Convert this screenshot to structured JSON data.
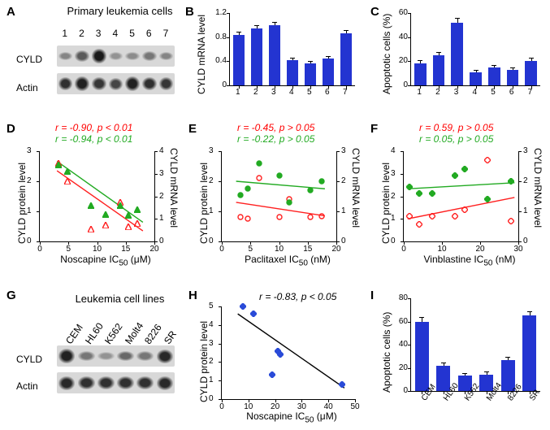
{
  "colors": {
    "bar": "#2334d1",
    "marker_red": "#ff2020",
    "marker_green": "#22aa22",
    "marker_blue": "#2a4bd8",
    "line_black": "#000000"
  },
  "panel_A": {
    "label": "A",
    "title": "Primary leukemia cells",
    "lanes": [
      "1",
      "2",
      "3",
      "4",
      "5",
      "6",
      "7"
    ],
    "rows": [
      {
        "name": "CYLD",
        "type": "blot",
        "intensities": [
          0.25,
          0.55,
          1.0,
          0.15,
          0.2,
          0.35,
          0.25
        ]
      },
      {
        "name": "Actin",
        "type": "blot",
        "intensities": [
          0.85,
          0.95,
          0.8,
          0.7,
          0.95,
          0.85,
          0.8
        ]
      }
    ]
  },
  "panel_B": {
    "label": "B",
    "ylabel": "CYLD mRNA level",
    "ylim": [
      0,
      1.2
    ],
    "yticks": [
      0.0,
      0.4,
      0.8,
      1.2
    ],
    "categories": [
      "1",
      "2",
      "3",
      "4",
      "5",
      "6",
      "7"
    ],
    "values": [
      0.84,
      0.94,
      1.0,
      0.42,
      0.36,
      0.44,
      0.86
    ],
    "errors": [
      0.04,
      0.04,
      0.04,
      0.03,
      0.03,
      0.03,
      0.04
    ]
  },
  "panel_C": {
    "label": "C",
    "ylabel": "Apoptotic cells (%)",
    "ylim": [
      0,
      60
    ],
    "yticks": [
      0,
      20,
      40,
      60
    ],
    "categories": [
      "1",
      "2",
      "3",
      "4",
      "5",
      "6",
      "7"
    ],
    "values": [
      18,
      25,
      52,
      11,
      15,
      13,
      20
    ],
    "errors": [
      2,
      2,
      3,
      1,
      1.5,
      1,
      2
    ]
  },
  "panel_D": {
    "label": "D",
    "xlabel": "Noscapine  IC",
    "xunit_sub": "50",
    "xunit": " (μM)",
    "yl_label": "CYLD protein level",
    "yr_label": "CYLD mRNA level",
    "xlim": [
      0,
      20
    ],
    "xticks": [
      0,
      5,
      10,
      15,
      20
    ],
    "yl_lim": [
      0,
      3
    ],
    "yl_ticks": [
      0,
      1,
      2,
      3
    ],
    "yr_lim": [
      0,
      4
    ],
    "yr_ticks": [
      0,
      1,
      2,
      3,
      4
    ],
    "stat_red": "r = -0.90, p < 0.01",
    "stat_green": "r = -0.94, p < 0.01",
    "points_red": [
      [
        3.2,
        2.6
      ],
      [
        4.8,
        2.0
      ],
      [
        9.0,
        0.4
      ],
      [
        11.5,
        0.55
      ],
      [
        14.0,
        1.3
      ],
      [
        15.5,
        0.5
      ],
      [
        17.0,
        0.6
      ]
    ],
    "points_green": [
      [
        3.2,
        3.4
      ],
      [
        4.8,
        3.1
      ],
      [
        9.0,
        1.6
      ],
      [
        11.5,
        1.2
      ],
      [
        14.0,
        1.6
      ],
      [
        15.5,
        1.15
      ],
      [
        17.0,
        1.4
      ]
    ],
    "line_red": {
      "x1": 3,
      "y1": 2.35,
      "x2": 18,
      "y2": 0.35
    },
    "line_green": {
      "x1": 3,
      "y1": 3.55,
      "x2": 18,
      "y2": 0.85
    },
    "marker_red": "triangle-open",
    "marker_green": "triangle-filled"
  },
  "panel_E": {
    "label": "E",
    "xlabel": "Paclitaxel  IC",
    "xunit_sub": "50",
    "xunit": " (nM)",
    "yl_label": "CYLD protein level",
    "yr_label": "CYLD mRNA level",
    "xlim": [
      0,
      20
    ],
    "xticks": [
      0,
      5,
      10,
      15,
      20
    ],
    "yl_lim": [
      0,
      3
    ],
    "yl_ticks": [
      0,
      1,
      2,
      3
    ],
    "yr_lim": [
      0,
      3
    ],
    "yr_ticks": [
      0,
      1,
      2,
      3
    ],
    "stat_red": "r = -0.45, p > 0.05",
    "stat_green": "r = -0.22, p > 0.05",
    "points_red": [
      [
        3.2,
        0.8
      ],
      [
        4.5,
        0.75
      ],
      [
        6.5,
        2.1
      ],
      [
        10.0,
        0.8
      ],
      [
        11.8,
        1.4
      ],
      [
        15.5,
        0.8
      ],
      [
        17.5,
        0.85
      ]
    ],
    "points_green": [
      [
        3.2,
        1.55
      ],
      [
        4.5,
        1.75
      ],
      [
        6.5,
        2.6
      ],
      [
        10.0,
        2.2
      ],
      [
        11.8,
        1.3
      ],
      [
        15.5,
        1.7
      ],
      [
        17.5,
        2.0
      ]
    ],
    "line_red": {
      "x1": 2.5,
      "y1": 1.3,
      "x2": 18,
      "y2": 0.85
    },
    "line_green": {
      "x1": 2.5,
      "y1": 2.0,
      "x2": 18,
      "y2": 1.75
    },
    "marker_red": "circle-open",
    "marker_green": "circle-filled"
  },
  "panel_F": {
    "label": "F",
    "xlabel": "Vinblastine  IC",
    "xunit_sub": "50",
    "xunit": " (nM)",
    "yl_label": "CYLD protein level",
    "yr_label": "CYLD mRNA level",
    "xlim": [
      0,
      30
    ],
    "xticks": [
      0,
      10,
      20,
      30
    ],
    "yl_lim": [
      0,
      4
    ],
    "yl_ticks": [
      0,
      1,
      2,
      3,
      4
    ],
    "yr_lim": [
      0,
      3
    ],
    "yr_ticks": [
      0,
      1,
      2,
      3
    ],
    "stat_red": "r = 0.59, p > 0.05",
    "stat_green": "r = 0.05, p > 0.05",
    "points_red": [
      [
        1.5,
        1.1
      ],
      [
        4.0,
        0.75
      ],
      [
        7.5,
        1.1
      ],
      [
        13.5,
        1.1
      ],
      [
        16.0,
        1.4
      ],
      [
        22.0,
        3.6
      ],
      [
        28.0,
        0.9
      ]
    ],
    "points_green": [
      [
        1.5,
        1.8
      ],
      [
        4.0,
        1.6
      ],
      [
        7.5,
        1.6
      ],
      [
        13.5,
        2.2
      ],
      [
        16.0,
        2.4
      ],
      [
        22.0,
        1.4
      ],
      [
        28.0,
        2.0
      ]
    ],
    "line_red": {
      "x1": 1,
      "y1": 1.0,
      "x2": 29,
      "y2": 1.95
    },
    "line_green": {
      "x1": 1,
      "y1": 1.75,
      "x2": 29,
      "y2": 1.95
    },
    "marker_red": "diamond-open",
    "marker_green": "diamond-filled"
  },
  "panel_G": {
    "label": "G",
    "title": "Leukemia cell lines",
    "lanes": [
      "CEM",
      "HL60",
      "K562",
      "Molt4",
      "8226",
      "SR"
    ],
    "rows": [
      {
        "name": "CYLD",
        "type": "blot",
        "intensities": [
          0.95,
          0.35,
          0.15,
          0.45,
          0.35,
          0.9
        ]
      },
      {
        "name": "Actin",
        "type": "blot",
        "intensities": [
          0.9,
          0.85,
          0.85,
          0.85,
          0.85,
          0.9
        ]
      }
    ]
  },
  "panel_H": {
    "label": "H",
    "xlabel": "Noscapine  IC",
    "xunit_sub": "50",
    "xunit": " (μM)",
    "ylabel": "CYLD protein level",
    "xlim": [
      0,
      50
    ],
    "xticks": [
      0,
      10,
      20,
      30,
      40,
      50
    ],
    "ylim": [
      0,
      5
    ],
    "yticks": [
      0,
      1,
      2,
      3,
      4,
      5
    ],
    "stat": "r = -0.83, p < 0.05",
    "points": [
      [
        8,
        5.0
      ],
      [
        12,
        4.6
      ],
      [
        19,
        1.3
      ],
      [
        21,
        2.6
      ],
      [
        22,
        2.4
      ],
      [
        45,
        0.8
      ]
    ],
    "line": {
      "x1": 6,
      "y1": 4.6,
      "x2": 46,
      "y2": 0.6
    }
  },
  "panel_I": {
    "label": "I",
    "ylabel": "Apoptotic cells (%)",
    "ylim": [
      0,
      80
    ],
    "yticks": [
      0,
      20,
      40,
      60,
      80
    ],
    "categories": [
      "CEM",
      "HL60",
      "K562",
      "Molt4",
      "8226",
      "SR"
    ],
    "values": [
      60,
      22,
      13,
      14,
      27,
      65
    ],
    "errors": [
      3,
      2,
      2,
      2,
      2,
      3
    ]
  }
}
